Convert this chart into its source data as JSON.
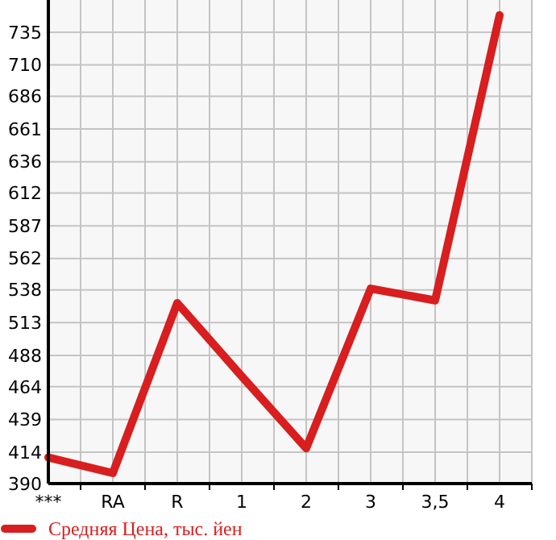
{
  "chart_data": {
    "type": "line",
    "categories": [
      "***",
      "RA",
      "R",
      "1",
      "2",
      "3",
      "3,5",
      "4"
    ],
    "series": [
      {
        "name": "Средняя Цена, тыс. йен",
        "color": "#d81e1e",
        "values": [
          410,
          398,
          528,
          472,
          417,
          539,
          530,
          748
        ]
      }
    ],
    "ylim": [
      390,
      759.6
    ],
    "yticks": [
      390,
      414,
      439,
      464,
      488,
      513,
      538,
      562,
      587,
      612,
      636,
      661,
      686,
      710,
      735
    ],
    "grid": true,
    "legend": "bottom",
    "marker": "none",
    "line_style": "solid"
  }
}
